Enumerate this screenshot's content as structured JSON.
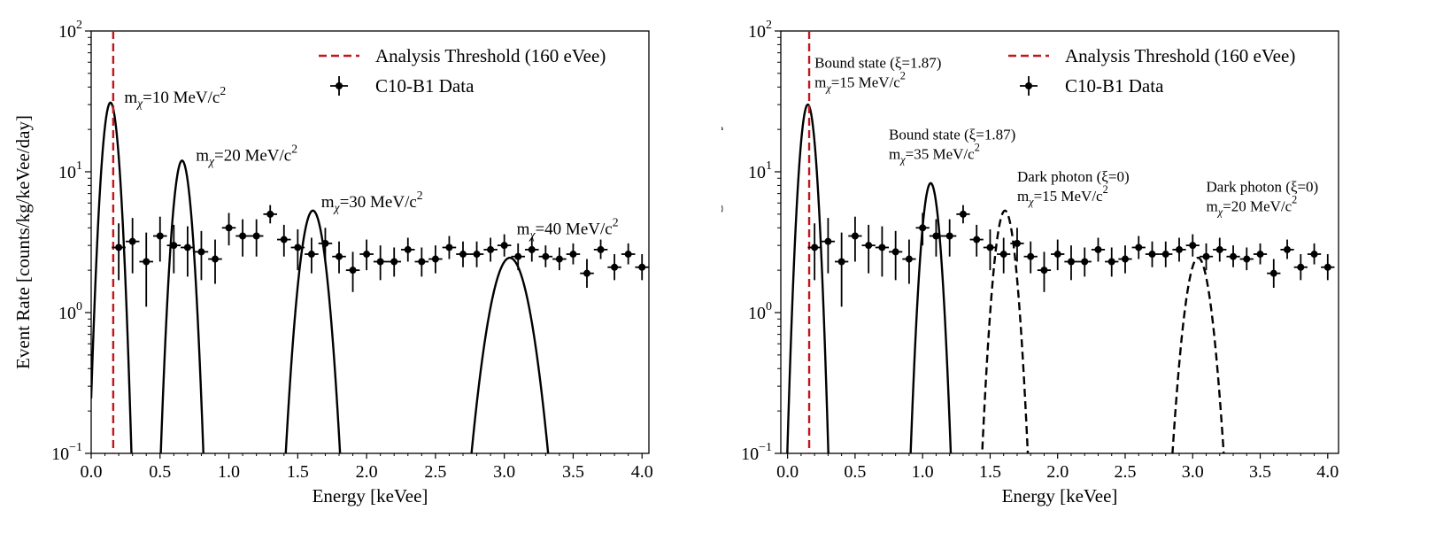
{
  "chart_data": [
    {
      "type": "scatter",
      "xlabel": "Energy [keVee]",
      "ylabel": "Event Rate [counts/kg/keVee/day]",
      "xlim": [
        0.0,
        4.05
      ],
      "ylim": [
        0.1,
        100
      ],
      "yscale": "log",
      "xticks": [
        "0.0",
        "0.5",
        "1.0",
        "1.5",
        "2.0",
        "2.5",
        "3.0",
        "3.5",
        "4.0"
      ],
      "yticks": [
        {
          "base": "10",
          "exp": "−1",
          "value": 0.1
        },
        {
          "base": "10",
          "exp": "0",
          "value": 1
        },
        {
          "base": "10",
          "exp": "1",
          "value": 10
        },
        {
          "base": "10",
          "exp": "2",
          "value": 100
        }
      ],
      "legend_position": "top-right",
      "legend": {
        "threshold_label": "Analysis Threshold (160 eVee)",
        "data_label": "C10-B1 Data"
      },
      "threshold": {
        "x": 0.16,
        "color": "#c0161c"
      },
      "data_series": {
        "name": "C10-B1 Data",
        "x": [
          0.2,
          0.3,
          0.4,
          0.5,
          0.6,
          0.7,
          0.8,
          0.9,
          1.0,
          1.1,
          1.2,
          1.3,
          1.4,
          1.5,
          1.6,
          1.7,
          1.8,
          1.9,
          2.0,
          2.1,
          2.2,
          2.3,
          2.4,
          2.5,
          2.6,
          2.7,
          2.8,
          2.9,
          3.0,
          3.1,
          3.2,
          3.3,
          3.4,
          3.5,
          3.6,
          3.7,
          3.8,
          3.9,
          4.0
        ],
        "y": [
          2.9,
          3.2,
          2.3,
          3.5,
          3.0,
          2.9,
          2.7,
          2.4,
          4.0,
          3.5,
          3.5,
          5.0,
          3.3,
          2.9,
          2.6,
          3.1,
          2.5,
          2.0,
          2.6,
          2.3,
          2.3,
          2.8,
          2.3,
          2.4,
          2.9,
          2.6,
          2.6,
          2.8,
          3.0,
          2.5,
          2.8,
          2.5,
          2.4,
          2.6,
          1.9,
          2.8,
          2.1,
          2.6,
          2.1
        ],
        "yerr_low": [
          1.2,
          1.3,
          1.2,
          1.2,
          1.1,
          1.1,
          1.0,
          0.8,
          1.0,
          1.0,
          1.0,
          0.7,
          0.8,
          0.9,
          0.7,
          0.8,
          0.6,
          0.6,
          0.6,
          0.6,
          0.5,
          0.5,
          0.5,
          0.5,
          0.5,
          0.5,
          0.5,
          0.5,
          0.5,
          0.5,
          0.5,
          0.4,
          0.4,
          0.4,
          0.4,
          0.4,
          0.4,
          0.4,
          0.4
        ],
        "yerr_high": [
          1.4,
          1.5,
          1.4,
          1.3,
          1.2,
          1.2,
          1.1,
          0.9,
          1.1,
          1.1,
          1.1,
          0.8,
          0.9,
          1.0,
          0.8,
          0.9,
          0.7,
          0.7,
          0.7,
          0.7,
          0.6,
          0.6,
          0.6,
          0.6,
          0.6,
          0.6,
          0.6,
          0.6,
          0.6,
          0.6,
          0.6,
          0.5,
          0.5,
          0.5,
          0.5,
          0.5,
          0.5,
          0.5,
          0.5
        ],
        "xerr": 0.05
      },
      "signal_curves": [
        {
          "style": "solid",
          "center": 0.14,
          "peak": 31,
          "sigma": 0.045,
          "x_start": 0.0
        },
        {
          "style": "solid",
          "center": 0.66,
          "peak": 12,
          "sigma": 0.05
        },
        {
          "style": "solid",
          "center": 1.61,
          "peak": 5.3,
          "sigma": 0.07
        },
        {
          "style": "solid",
          "center": 3.04,
          "peak": 2.45,
          "sigma": 0.11
        }
      ],
      "annotations": [
        {
          "prefix": "m",
          "sub": "χ",
          "mid": "=10 MeV/c",
          "sup": "2",
          "x": 0.24,
          "y": 31
        },
        {
          "prefix": "m",
          "sub": "χ",
          "mid": "=20 MeV/c",
          "sup": "2",
          "x": 0.76,
          "y": 12
        },
        {
          "prefix": "m",
          "sub": "χ",
          "mid": "=30 MeV/c",
          "sup": "2",
          "x": 1.67,
          "y": 5.6
        },
        {
          "prefix": "m",
          "sub": "χ",
          "mid": "=40 MeV/c",
          "sup": "2",
          "x": 3.09,
          "y": 3.6
        }
      ]
    },
    {
      "type": "scatter",
      "xlabel": "Energy [keVee]",
      "ylabel": "Event Rate [counts/kg/keVee/day]",
      "xlim": [
        -0.05,
        4.08
      ],
      "ylim": [
        0.1,
        100
      ],
      "yscale": "log",
      "xticks": [
        "0.0",
        "0.5",
        "1.0",
        "1.5",
        "2.0",
        "2.5",
        "3.0",
        "3.5",
        "4.0"
      ],
      "yticks": [
        {
          "base": "10",
          "exp": "−1",
          "value": 0.1
        },
        {
          "base": "10",
          "exp": "0",
          "value": 1
        },
        {
          "base": "10",
          "exp": "1",
          "value": 10
        },
        {
          "base": "10",
          "exp": "2",
          "value": 100
        }
      ],
      "legend_position": "top-right",
      "legend": {
        "threshold_label": "Analysis Threshold (160 eVee)",
        "data_label": "C10-B1 Data"
      },
      "threshold": {
        "x": 0.16,
        "color": "#c0161c"
      },
      "data_series": {
        "name": "C10-B1 Data",
        "x": [
          0.2,
          0.3,
          0.4,
          0.5,
          0.6,
          0.7,
          0.8,
          0.9,
          1.0,
          1.1,
          1.2,
          1.3,
          1.4,
          1.5,
          1.6,
          1.7,
          1.8,
          1.9,
          2.0,
          2.1,
          2.2,
          2.3,
          2.4,
          2.5,
          2.6,
          2.7,
          2.8,
          2.9,
          3.0,
          3.1,
          3.2,
          3.3,
          3.4,
          3.5,
          3.6,
          3.7,
          3.8,
          3.9,
          4.0
        ],
        "y": [
          2.9,
          3.2,
          2.3,
          3.5,
          3.0,
          2.9,
          2.7,
          2.4,
          4.0,
          3.5,
          3.5,
          5.0,
          3.3,
          2.9,
          2.6,
          3.1,
          2.5,
          2.0,
          2.6,
          2.3,
          2.3,
          2.8,
          2.3,
          2.4,
          2.9,
          2.6,
          2.6,
          2.8,
          3.0,
          2.5,
          2.8,
          2.5,
          2.4,
          2.6,
          1.9,
          2.8,
          2.1,
          2.6,
          2.1
        ],
        "yerr_low": [
          1.2,
          1.3,
          1.2,
          1.2,
          1.1,
          1.1,
          1.0,
          0.8,
          1.0,
          1.0,
          1.0,
          0.7,
          0.8,
          0.9,
          0.7,
          0.8,
          0.6,
          0.6,
          0.6,
          0.6,
          0.5,
          0.5,
          0.5,
          0.5,
          0.5,
          0.5,
          0.5,
          0.5,
          0.5,
          0.5,
          0.5,
          0.4,
          0.4,
          0.4,
          0.4,
          0.4,
          0.4,
          0.4,
          0.4
        ],
        "yerr_high": [
          1.4,
          1.5,
          1.4,
          1.3,
          1.2,
          1.2,
          1.1,
          0.9,
          1.1,
          1.1,
          1.1,
          0.8,
          0.9,
          1.0,
          0.8,
          0.9,
          0.7,
          0.7,
          0.7,
          0.7,
          0.6,
          0.6,
          0.6,
          0.6,
          0.6,
          0.6,
          0.6,
          0.6,
          0.6,
          0.6,
          0.6,
          0.5,
          0.5,
          0.5,
          0.5,
          0.5,
          0.5,
          0.5,
          0.5
        ],
        "xerr": 0.05
      },
      "signal_curves": [
        {
          "style": "solid",
          "center": 0.15,
          "peak": 30,
          "sigma": 0.045
        },
        {
          "style": "solid",
          "center": 1.06,
          "peak": 8.3,
          "sigma": 0.05
        },
        {
          "style": "dashed",
          "center": 1.61,
          "peak": 5.3,
          "sigma": 0.06
        },
        {
          "style": "dashed",
          "center": 3.04,
          "peak": 2.45,
          "sigma": 0.075
        }
      ],
      "annotations": [
        {
          "line1": "Bound state (ξ=1.87)",
          "prefix": "m",
          "sub": "χ",
          "mid": "=15 MeV/c",
          "sup": "2",
          "x": 0.2,
          "y": 55
        },
        {
          "line1": "Bound state (ξ=1.87)",
          "prefix": "m",
          "sub": "χ",
          "mid": "=35 MeV/c",
          "sup": "2",
          "x": 0.75,
          "y": 17
        },
        {
          "line1": "Dark photon (ξ=0)",
          "prefix": "m",
          "sub": "χ",
          "mid": "=15 MeV/c",
          "sup": "2",
          "x": 1.7,
          "y": 8.5
        },
        {
          "line1": "Dark photon (ξ=0)",
          "prefix": "m",
          "sub": "χ",
          "mid": "=20 MeV/c",
          "sup": "2",
          "x": 3.1,
          "y": 7.2
        }
      ]
    }
  ]
}
